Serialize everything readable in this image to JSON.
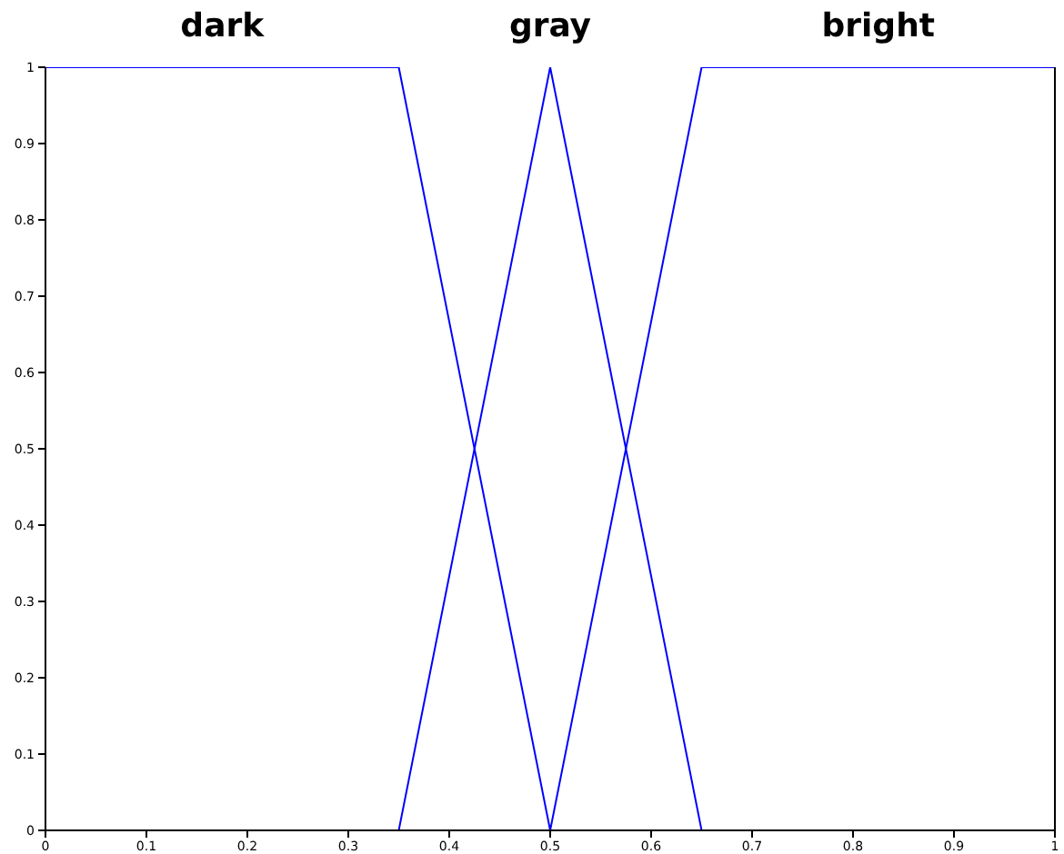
{
  "chart_data": {
    "type": "line",
    "xlim": [
      0,
      1
    ],
    "ylim": [
      0,
      1
    ],
    "xticks": [
      0,
      0.1,
      0.2,
      0.3,
      0.4,
      0.5,
      0.6,
      0.7,
      0.8,
      0.9,
      1
    ],
    "yticks": [
      0,
      0.1,
      0.2,
      0.3,
      0.4,
      0.5,
      0.6,
      0.7,
      0.8,
      0.9,
      1
    ],
    "marker": "none",
    "line_style": "solid",
    "series": [
      {
        "name": "dark",
        "color": "#0000ff",
        "x": [
          0,
          0.35,
          0.5
        ],
        "values": [
          1,
          1,
          0
        ]
      },
      {
        "name": "gray",
        "color": "#0000ff",
        "x": [
          0.35,
          0.5,
          0.65
        ],
        "values": [
          0,
          1,
          0
        ]
      },
      {
        "name": "bright",
        "color": "#0000ff",
        "x": [
          0.5,
          0.65,
          1
        ],
        "values": [
          0,
          1,
          1
        ]
      }
    ]
  }
}
